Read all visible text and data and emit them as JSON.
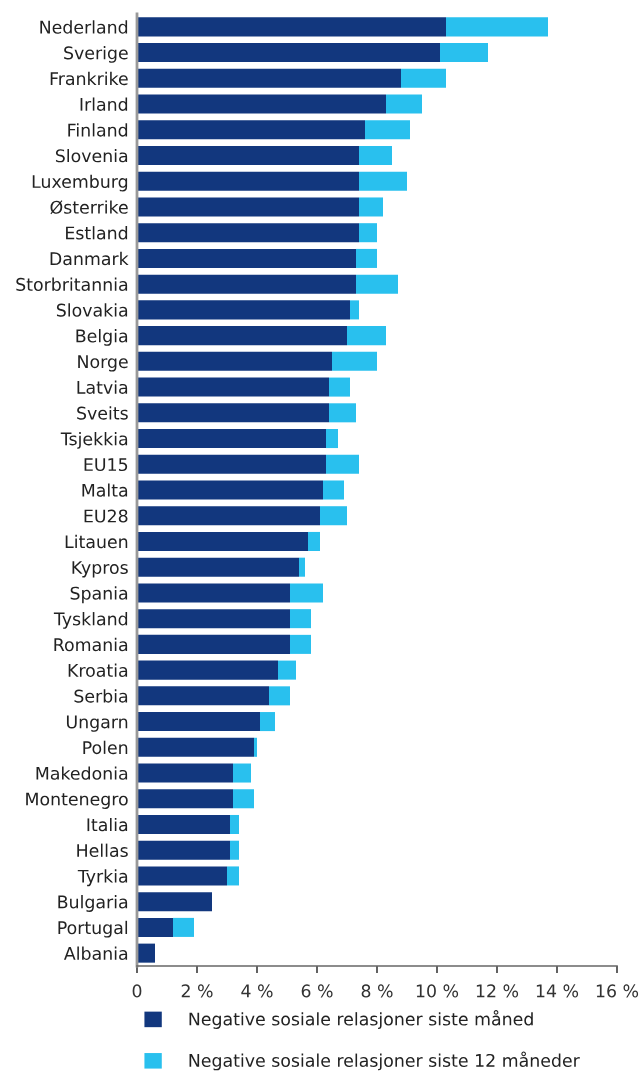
{
  "chart_data": {
    "type": "bar",
    "orientation": "horizontal",
    "stacked": true,
    "categories": [
      "Nederland",
      "Sverige",
      "Frankrike",
      "Irland",
      "Finland",
      "Slovenia",
      "Luxemburg",
      "Østerrike",
      "Estland",
      "Danmark",
      "Storbritannia",
      "Slovakia",
      "Belgia",
      "Norge",
      "Latvia",
      "Sveits",
      "Tsjekkia",
      "EU15",
      "Malta",
      "EU28",
      "Litauen",
      "Kypros",
      "Spania",
      "Tyskland",
      "Romania",
      "Kroatia",
      "Serbia",
      "Ungarn",
      "Polen",
      "Makedonia",
      "Montenegro",
      "Italia",
      "Hellas",
      "Tyrkia",
      "Bulgaria",
      "Portugal",
      "Albania"
    ],
    "series": [
      {
        "name": "Negative sosiale relasjoner siste måned",
        "color": "#12377e",
        "values": [
          10.3,
          10.1,
          8.8,
          8.3,
          7.6,
          7.4,
          7.4,
          7.4,
          7.4,
          7.3,
          7.3,
          7.1,
          7.0,
          6.5,
          6.4,
          6.4,
          6.3,
          6.3,
          6.2,
          6.1,
          5.7,
          5.4,
          5.1,
          5.1,
          5.1,
          4.7,
          4.4,
          4.1,
          3.9,
          3.2,
          3.2,
          3.1,
          3.1,
          3.0,
          2.5,
          1.2,
          0.6
        ]
      },
      {
        "name": "Negative sosiale relasjoner siste 12 måneder",
        "color": "#29c0ee",
        "values": [
          3.4,
          1.6,
          1.5,
          1.2,
          1.5,
          1.1,
          1.6,
          0.8,
          0.6,
          0.7,
          1.4,
          0.3,
          1.3,
          1.5,
          0.7,
          0.9,
          0.4,
          1.1,
          0.7,
          0.9,
          0.4,
          0.2,
          1.1,
          0.7,
          0.7,
          0.6,
          0.7,
          0.5,
          0.1,
          0.6,
          0.7,
          0.3,
          0.3,
          0.4,
          null,
          0.7,
          null
        ]
      }
    ],
    "xlim": [
      0,
      16
    ],
    "xticks": [
      0,
      {
        "value": 2,
        "label": "2 %"
      },
      {
        "value": 4,
        "label": "4 %"
      },
      {
        "value": 6,
        "label": "6 %"
      },
      {
        "value": 8,
        "label": "8 %"
      },
      {
        "value": 10,
        "label": "10 %"
      },
      {
        "value": 12,
        "label": "12 %"
      },
      {
        "value": 14,
        "label": "14 %"
      },
      {
        "value": 16,
        "label": "16 %"
      }
    ],
    "grid": false,
    "legend": "bottom"
  }
}
